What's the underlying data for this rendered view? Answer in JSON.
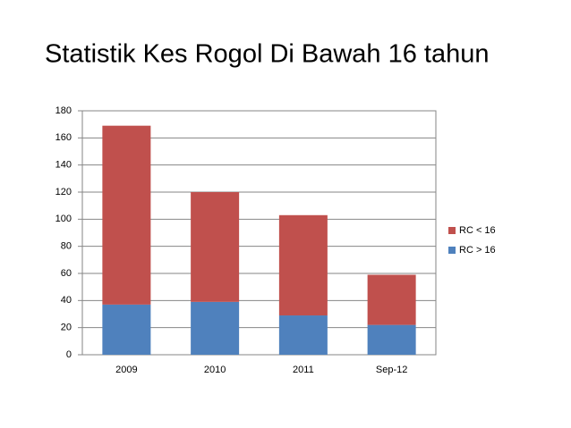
{
  "chart_data": {
    "type": "stacked_bar",
    "title": "Statistik Kes Rogol Di Bawah 16 tahun",
    "categories": [
      "2009",
      "2010",
      "2011",
      "Sep-12"
    ],
    "series": [
      {
        "name": "RC > 16",
        "color": "#4f81bd",
        "values": [
          37,
          39,
          29,
          22
        ]
      },
      {
        "name": "RC < 16",
        "color": "#c0504d",
        "values": [
          132,
          81,
          74,
          37
        ]
      }
    ],
    "ylim": [
      0,
      180
    ],
    "yticks": [
      0,
      20,
      40,
      60,
      80,
      100,
      120,
      140,
      160,
      180
    ],
    "grid": true,
    "legend": "right"
  }
}
